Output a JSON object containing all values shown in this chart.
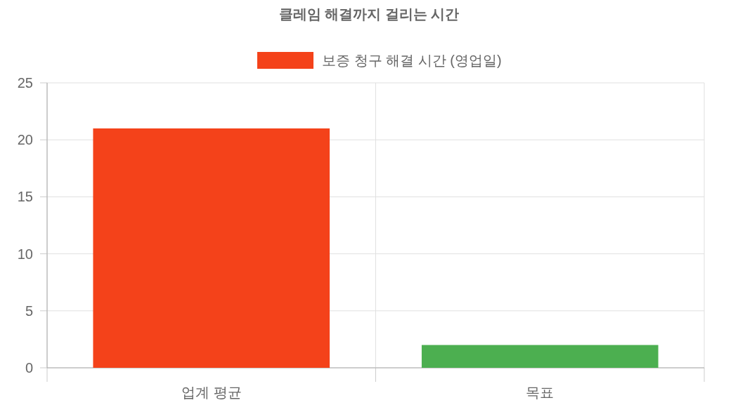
{
  "chart_data": {
    "type": "bar",
    "title": "클레임 해결까지 걸리는 시간",
    "categories": [
      "업계 평균",
      "목표"
    ],
    "series": [
      {
        "name": "보증 청구 해결 시간 (영업일)",
        "color": "#f4421a",
        "colors": [
          "#f4421a",
          "#4caf50"
        ],
        "values": [
          21,
          2
        ]
      }
    ],
    "ylim": [
      0,
      25
    ],
    "yticks": [
      0,
      5,
      10,
      15,
      20,
      25
    ],
    "grid": true,
    "legend": "top"
  }
}
